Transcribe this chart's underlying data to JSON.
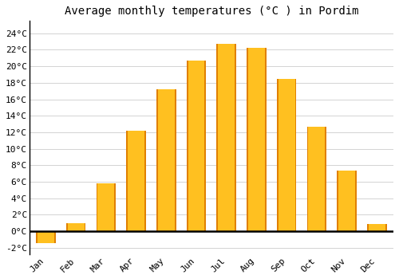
{
  "title": "Average monthly temperatures (°C ) in Pordim",
  "months": [
    "Jan",
    "Feb",
    "Mar",
    "Apr",
    "May",
    "Jun",
    "Jul",
    "Aug",
    "Sep",
    "Oct",
    "Nov",
    "Dec"
  ],
  "temperatures": [
    -1.5,
    1.0,
    5.8,
    12.2,
    17.2,
    20.7,
    22.7,
    22.2,
    18.5,
    12.7,
    7.3,
    0.9
  ],
  "bar_color": "#FFC020",
  "bar_edge_color": "#E08000",
  "background_color": "#FFFFFF",
  "grid_color": "#CCCCCC",
  "ytick_labels": [
    "-2°C",
    "0°C",
    "2°C",
    "4°C",
    "6°C",
    "8°C",
    "10°C",
    "12°C",
    "14°C",
    "16°C",
    "18°C",
    "20°C",
    "22°C",
    "24°C"
  ],
  "ytick_values": [
    -2,
    0,
    2,
    4,
    6,
    8,
    10,
    12,
    14,
    16,
    18,
    20,
    22,
    24
  ],
  "ylim": [
    -2.8,
    25.5
  ],
  "xlim": [
    -0.55,
    11.55
  ],
  "title_fontsize": 10,
  "tick_fontsize": 8,
  "font_family": "monospace"
}
